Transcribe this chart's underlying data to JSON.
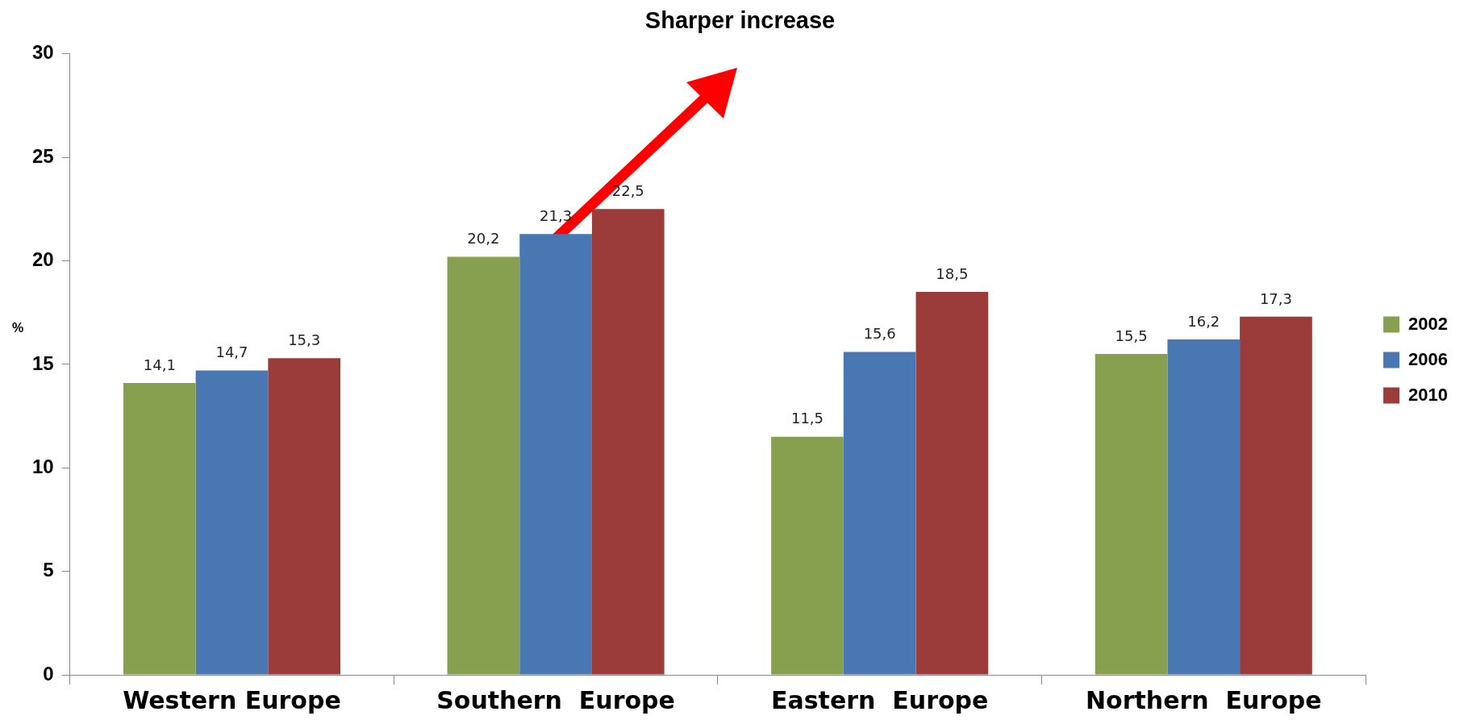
{
  "chart_data": {
    "type": "bar",
    "title": "Sharper increase",
    "ylabel": "%",
    "categories": [
      "Western Europe",
      "Southern  Europe",
      "Eastern  Europe",
      "Northern  Europe"
    ],
    "series": [
      {
        "name": "2002",
        "color": "#87a04f",
        "values": [
          14.1,
          20.2,
          11.5,
          15.5
        ],
        "value_labels": [
          "14,1",
          "20,2",
          "11,5",
          "15,5"
        ]
      },
      {
        "name": "2006",
        "color": "#4877b1",
        "values": [
          14.7,
          21.3,
          15.6,
          16.2
        ],
        "value_labels": [
          "14,7",
          "21,3",
          "15,6",
          "16,2"
        ]
      },
      {
        "name": "2010",
        "color": "#9b3c3b",
        "values": [
          15.3,
          22.5,
          18.5,
          17.3
        ],
        "value_labels": [
          "15,3",
          "22,5",
          "18,5",
          "17,3"
        ]
      }
    ],
    "ylim": [
      0,
      30
    ],
    "yticks": [
      0,
      5,
      10,
      15,
      20,
      25,
      30
    ],
    "grid": false,
    "legend": "right"
  }
}
